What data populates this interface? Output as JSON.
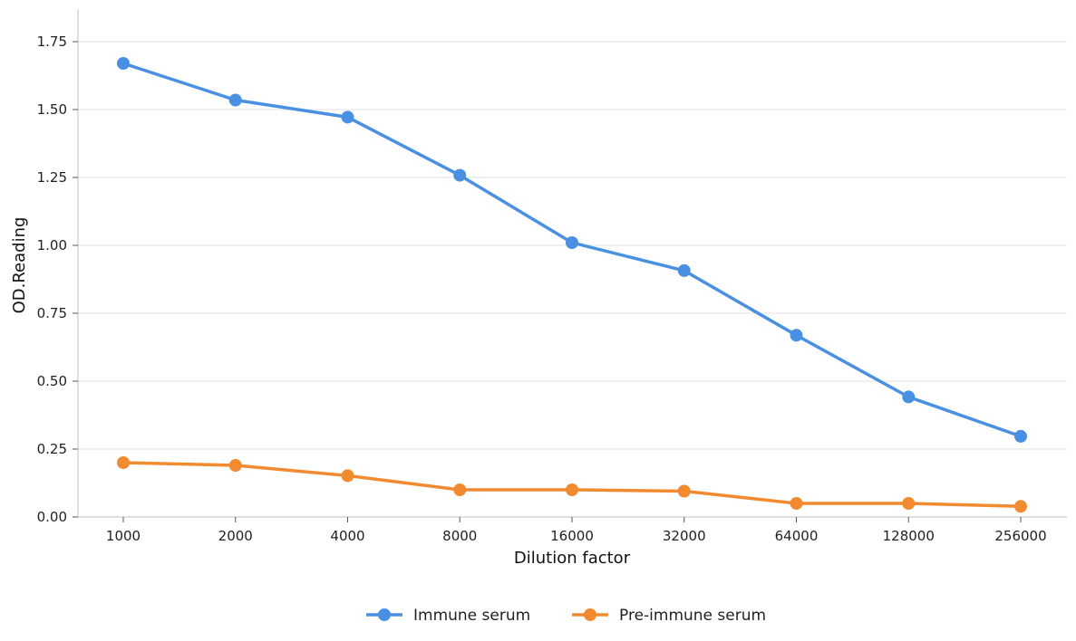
{
  "chart_data": {
    "type": "line",
    "title": "",
    "xlabel": "Dilution factor",
    "ylabel": "OD.Reading",
    "x_scale": "log2",
    "categories": [
      "1000",
      "2000",
      "4000",
      "8000",
      "16000",
      "32000",
      "64000",
      "128000",
      "256000"
    ],
    "yticks": [
      "0.00",
      "0.25",
      "0.50",
      "0.75",
      "1.00",
      "1.25",
      "1.50",
      "1.75"
    ],
    "ylim": [
      0,
      1.87
    ],
    "grid": "horizontal",
    "legend_position": "bottom-center",
    "series": [
      {
        "name": "Immune serum",
        "color": "#4a90e2",
        "values": [
          1.67,
          1.535,
          1.472,
          1.258,
          1.01,
          0.907,
          0.669,
          0.442,
          0.297
        ]
      },
      {
        "name": "Pre-immune serum",
        "color": "#f28a30",
        "values": [
          0.2,
          0.19,
          0.152,
          0.1,
          0.1,
          0.095,
          0.05,
          0.05,
          0.039
        ]
      }
    ]
  }
}
